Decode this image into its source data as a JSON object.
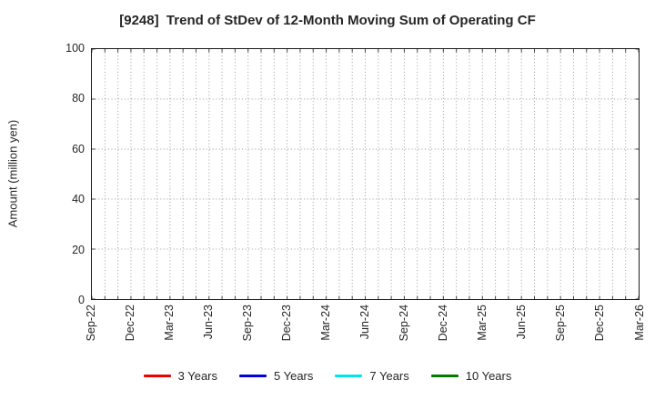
{
  "chart_data": {
    "type": "line",
    "title": "[9248]  Trend of StDev of 12-Month Moving Sum of Operating CF",
    "xlabel": "",
    "ylabel": "Amount (million yen)",
    "ylim": [
      0,
      100
    ],
    "yticks": [
      0,
      20,
      40,
      60,
      80,
      100
    ],
    "x_tick_labels": [
      "Sep-22",
      "Dec-22",
      "Mar-23",
      "Jun-23",
      "Sep-23",
      "Dec-23",
      "Mar-24",
      "Jun-24",
      "Sep-24",
      "Dec-24",
      "Mar-25",
      "Jun-25",
      "Sep-25",
      "Dec-25",
      "Mar-26"
    ],
    "x_label_step_months": 3,
    "grid": "dotted",
    "grid_color": "#999999",
    "frame_color": "#1c1c1c",
    "legend_position": "bottom",
    "series": [
      {
        "name": "3 Years",
        "color": "#ee0000",
        "values": []
      },
      {
        "name": "5 Years",
        "color": "#0000dd",
        "values": []
      },
      {
        "name": "7 Years",
        "color": "#00e6e6",
        "values": []
      },
      {
        "name": "10 Years",
        "color": "#007a00",
        "values": []
      }
    ]
  }
}
